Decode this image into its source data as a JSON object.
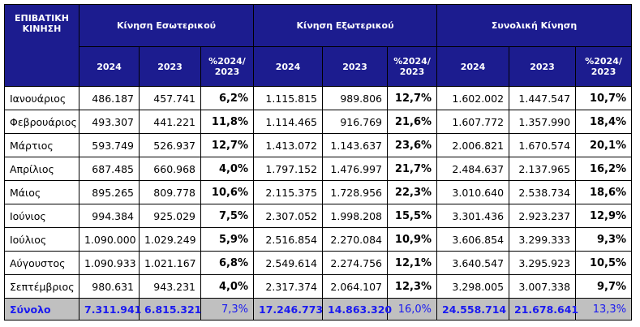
{
  "header": {
    "corner": "ΕΠΙΒΑΤΙΚΗ ΚΙΝΗΣΗ",
    "groups": [
      "Κίνηση Εσωτερικού",
      "Κίνηση Εξωτερικού",
      "Συνολική Κίνηση"
    ],
    "subheaders": [
      "2024",
      "2023",
      "%2024/ 2023",
      "2024",
      "2023",
      "%2024/ 2023",
      "2024",
      "2023",
      "%2024/ 2023"
    ]
  },
  "table": {
    "rows": [
      [
        "Ιανουάριος",
        "486.187",
        "457.741",
        "6,2%",
        "1.115.815",
        "989.806",
        "12,7%",
        "1.602.002",
        "1.447.547",
        "10,7%"
      ],
      [
        "Φεβρουάριος",
        "493.307",
        "441.221",
        "11,8%",
        "1.114.465",
        "916.769",
        "21,6%",
        "1.607.772",
        "1.357.990",
        "18,4%"
      ],
      [
        "Μάρτιος",
        "593.749",
        "526.937",
        "12,7%",
        "1.413.072",
        "1.143.637",
        "23,6%",
        "2.006.821",
        "1.670.574",
        "20,1%"
      ],
      [
        "Απρίλιος",
        "687.485",
        "660.968",
        "4,0%",
        "1.797.152",
        "1.476.997",
        "21,7%",
        "2.484.637",
        "2.137.965",
        "16,2%"
      ],
      [
        "Μάιος",
        "895.265",
        "809.778",
        "10,6%",
        "2.115.375",
        "1.728.956",
        "22,3%",
        "3.010.640",
        "2.538.734",
        "18,6%"
      ],
      [
        "Ιούνιος",
        "994.384",
        "925.029",
        "7,5%",
        "2.307.052",
        "1.998.208",
        "15,5%",
        "3.301.436",
        "2.923.237",
        "12,9%"
      ],
      [
        "Ιούλιος",
        "1.090.000",
        "1.029.249",
        "5,9%",
        "2.516.854",
        "2.270.084",
        "10,9%",
        "3.606.854",
        "3.299.333",
        "9,3%"
      ],
      [
        "Αύγουστος",
        "1.090.933",
        "1.021.167",
        "6,8%",
        "2.549.614",
        "2.274.756",
        "12,1%",
        "3.640.547",
        "3.295.923",
        "10,5%"
      ],
      [
        "Σεπτέμβριος",
        "980.631",
        "943.231",
        "4,0%",
        "2.317.374",
        "2.064.107",
        "12,3%",
        "3.298.005",
        "3.007.338",
        "9,7%"
      ]
    ],
    "total": [
      "Σύνολο",
      "7.311.941",
      "6.815.321",
      "7,3%",
      "17.246.773",
      "14.863.320",
      "16,0%",
      "24.558.714",
      "21.678.641",
      "13,3%"
    ]
  }
}
